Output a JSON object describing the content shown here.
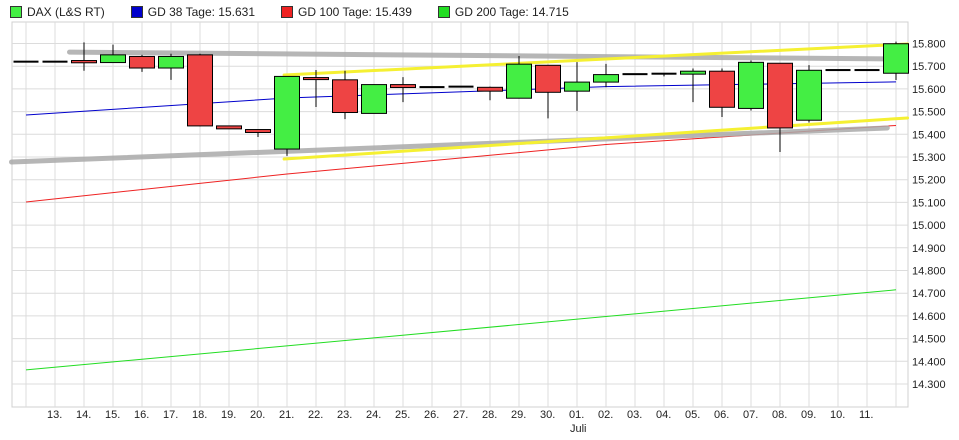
{
  "legend": [
    {
      "label": "DAX (L&S RT)",
      "color": "#44ee44"
    },
    {
      "label": "GD 38 Tage: 15.631",
      "color": "#0000cc"
    },
    {
      "label": "GD 100 Tage: 15.439",
      "color": "#ee2222"
    },
    {
      "label": "GD 200 Tage: 14.715",
      "color": "#22dd22"
    }
  ],
  "chart_data": {
    "type": "candlestick",
    "ylim": [
      14200,
      15900
    ],
    "y_ticks": [
      "14.300",
      "14.400",
      "14.500",
      "14.600",
      "14.700",
      "14.800",
      "14.900",
      "15.000",
      "15.100",
      "15.200",
      "15.300",
      "15.400",
      "15.500",
      "15.600",
      "15.700",
      "15.800"
    ],
    "x_tick_labels": [
      "",
      "13.",
      "14.",
      "15.",
      "16.",
      "17.",
      "18.",
      "19.",
      "20.",
      "21.",
      "22.",
      "23.",
      "24.",
      "25.",
      "26.",
      "27.",
      "28.",
      "29.",
      "30.",
      "01.",
      "02.",
      "03.",
      "04.",
      "05.",
      "06.",
      "07.",
      "08.",
      "09.",
      "10.",
      "11.",
      ""
    ],
    "x_month_label": {
      "text": "Juli",
      "at_index": 19
    },
    "grid": true,
    "colors": {
      "up": "#44ee44",
      "down": "#ee4444",
      "wick": "#000000"
    },
    "candles": [
      {
        "o": 15720,
        "h": 15720,
        "l": 15720,
        "c": 15720
      },
      {
        "o": 15720,
        "h": 15722,
        "l": 15718,
        "c": 15720
      },
      {
        "o": 15725,
        "h": 15805,
        "l": 15680,
        "c": 15715
      },
      {
        "o": 15716,
        "h": 15795,
        "l": 15716,
        "c": 15750
      },
      {
        "o": 15743,
        "h": 15750,
        "l": 15675,
        "c": 15692
      },
      {
        "o": 15692,
        "h": 15755,
        "l": 15640,
        "c": 15743
      },
      {
        "o": 15750,
        "h": 15755,
        "l": 15435,
        "c": 15437
      },
      {
        "o": 15437,
        "h": 15437,
        "l": 15424,
        "c": 15424
      },
      {
        "o": 15421,
        "h": 15421,
        "l": 15388,
        "c": 15408
      },
      {
        "o": 15335,
        "h": 15655,
        "l": 15305,
        "c": 15655
      },
      {
        "o": 15650,
        "h": 15683,
        "l": 15520,
        "c": 15641
      },
      {
        "o": 15640,
        "h": 15680,
        "l": 15467,
        "c": 15496
      },
      {
        "o": 15492,
        "h": 15619,
        "l": 15492,
        "c": 15619
      },
      {
        "o": 15619,
        "h": 15652,
        "l": 15542,
        "c": 15606
      },
      {
        "o": 15608,
        "h": 15610,
        "l": 15606,
        "c": 15608
      },
      {
        "o": 15610,
        "h": 15612,
        "l": 15608,
        "c": 15610
      },
      {
        "o": 15607,
        "h": 15610,
        "l": 15550,
        "c": 15590
      },
      {
        "o": 15559,
        "h": 15745,
        "l": 15559,
        "c": 15709
      },
      {
        "o": 15704,
        "h": 15706,
        "l": 15470,
        "c": 15585
      },
      {
        "o": 15590,
        "h": 15718,
        "l": 15503,
        "c": 15630
      },
      {
        "o": 15630,
        "h": 15710,
        "l": 15608,
        "c": 15663
      },
      {
        "o": 15665,
        "h": 15667,
        "l": 15663,
        "c": 15665
      },
      {
        "o": 15667,
        "h": 15668,
        "l": 15655,
        "c": 15667
      },
      {
        "o": 15665,
        "h": 15690,
        "l": 15542,
        "c": 15678
      },
      {
        "o": 15678,
        "h": 15690,
        "l": 15476,
        "c": 15519
      },
      {
        "o": 15514,
        "h": 15725,
        "l": 15505,
        "c": 15717
      },
      {
        "o": 15713,
        "h": 15713,
        "l": 15322,
        "c": 15428
      },
      {
        "o": 15462,
        "h": 15705,
        "l": 15452,
        "c": 15682
      },
      {
        "o": 15683,
        "h": 15684,
        "l": 15682,
        "c": 15683
      },
      {
        "o": 15683,
        "h": 15684,
        "l": 15682,
        "c": 15683
      },
      {
        "o": 15669,
        "h": 15808,
        "l": 15639,
        "c": 15799
      }
    ],
    "moving_averages": [
      {
        "name": "GD 38 Tage",
        "color": "#0000cc",
        "points": [
          [
            0,
            15485
          ],
          [
            9,
            15560
          ],
          [
            20,
            15610
          ],
          [
            30,
            15631
          ]
        ]
      },
      {
        "name": "GD 100 Tage",
        "color": "#ee2222",
        "points": [
          [
            0,
            15102
          ],
          [
            9,
            15225
          ],
          [
            20,
            15355
          ],
          [
            30,
            15439
          ]
        ]
      },
      {
        "name": "GD 200 Tage",
        "color": "#22dd22",
        "points": [
          [
            0,
            14362
          ],
          [
            30,
            14715
          ]
        ]
      }
    ],
    "trend_lines": [
      {
        "color": "#aaaaaa",
        "from": [
          1.5,
          15762
        ],
        "to": [
          29.7,
          15732
        ]
      },
      {
        "color": "#aaaaaa",
        "from": [
          -0.5,
          15278
        ],
        "to": [
          29.7,
          15428
        ]
      },
      {
        "color": "#f5f032",
        "from": [
          8.9,
          15661
        ],
        "to": [
          30.4,
          15798
        ]
      },
      {
        "color": "#f5f032",
        "from": [
          8.9,
          15291
        ],
        "to": [
          30.4,
          15472
        ]
      }
    ]
  }
}
